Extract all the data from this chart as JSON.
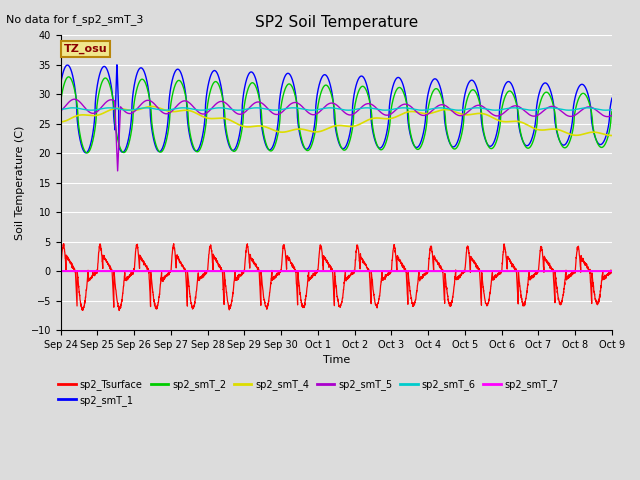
{
  "title": "SP2 Soil Temperature",
  "no_data_label": "No data for f_sp2_smT_3",
  "ylabel": "Soil Temperature (C)",
  "xlabel": "Time",
  "tz_label": "TZ_osu",
  "ylim": [
    -10,
    40
  ],
  "yticks": [
    -10,
    -5,
    0,
    5,
    10,
    15,
    20,
    25,
    30,
    35,
    40
  ],
  "x_tick_labels": [
    "Sep 24",
    "Sep 25",
    "Sep 26",
    "Sep 27",
    "Sep 28",
    "Sep 29",
    "Sep 30",
    "Oct 1",
    "Oct 2",
    "Oct 3",
    "Oct 4",
    "Oct 5",
    "Oct 6",
    "Oct 7",
    "Oct 8",
    "Oct 9"
  ],
  "bg_color": "#dcdcdc",
  "colors": {
    "sp2_Tsurface": "#ff0000",
    "sp2_smT_1": "#0000ff",
    "sp2_smT_2": "#00cc00",
    "sp2_smT_4": "#dddd00",
    "sp2_smT_5": "#aa00cc",
    "sp2_smT_6": "#00cccc",
    "sp2_smT_7": "#ff00ff"
  },
  "n_days": 15,
  "n_pts_per_day": 240
}
